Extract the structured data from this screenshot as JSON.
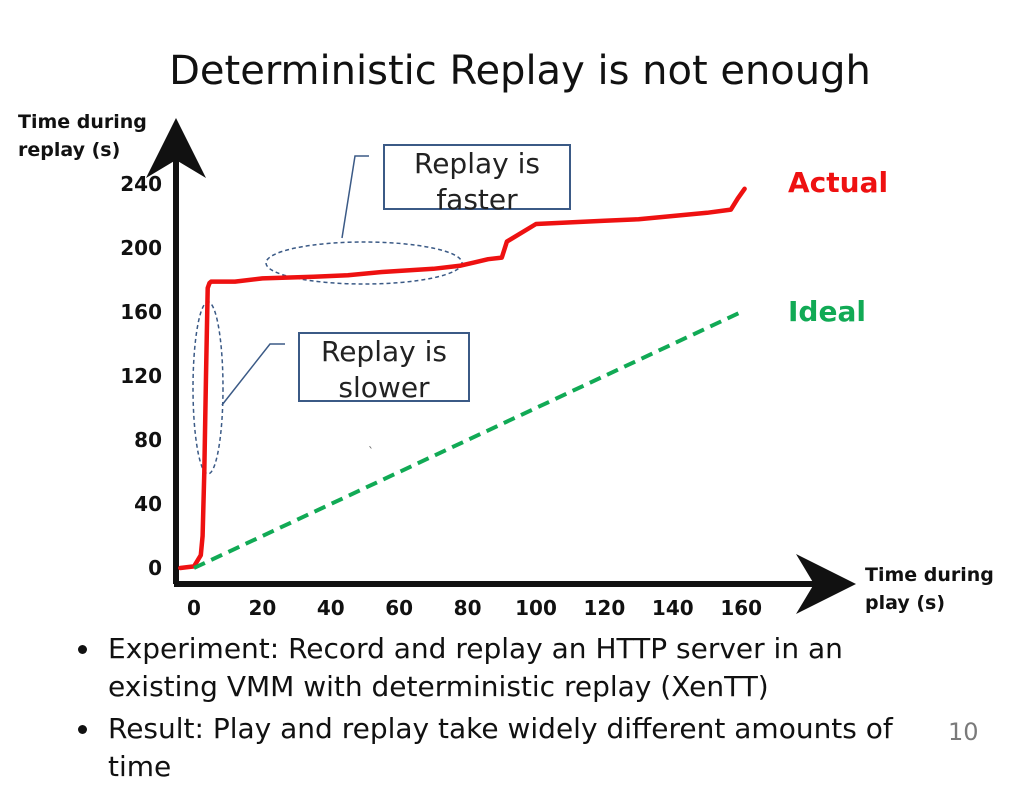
{
  "slide": {
    "title": "Deterministic Replay is not enough",
    "page_number": "10",
    "bullets": [
      "Experiment: Record and replay an HTTP server in an existing VMM with deterministic replay (XenTT)",
      "Result: Play and replay take widely different amounts of time"
    ],
    "callouts": {
      "faster": [
        "Replay is",
        "faster"
      ],
      "slower": [
        "Replay is",
        "slower"
      ]
    }
  },
  "chart_data": {
    "type": "line",
    "title": "",
    "xlabel": "Time during play (s)",
    "ylabel": "Time during replay (s)",
    "ylabel_lines": [
      "Time during",
      "replay (s)"
    ],
    "xlabel_lines": [
      "Time during",
      "play (s)"
    ],
    "x_ticks": [
      0,
      20,
      40,
      60,
      80,
      100,
      120,
      140,
      160
    ],
    "y_ticks": [
      0,
      40,
      80,
      120,
      160,
      200,
      240
    ],
    "xlim": [
      0,
      180
    ],
    "ylim": [
      0,
      250
    ],
    "grid": false,
    "legend": "direct labels at right end of lines",
    "series": [
      {
        "name": "Actual",
        "color": "#ee1111",
        "style": "solid",
        "x": [
          -4,
          0,
          2,
          2.5,
          3,
          3.5,
          4,
          4.5,
          5,
          7,
          12,
          20,
          35,
          45,
          55,
          70,
          78,
          82,
          86,
          90,
          91.5,
          93,
          100,
          110,
          120,
          130,
          140,
          150,
          157,
          159,
          161
        ],
        "y": [
          0,
          1,
          8,
          20,
          60,
          120,
          175,
          178,
          179,
          179,
          179,
          181,
          182,
          183,
          185,
          187,
          189,
          191,
          193,
          194,
          204,
          206,
          215,
          216,
          217,
          218,
          220,
          222,
          224,
          231,
          237
        ]
      },
      {
        "name": "Ideal",
        "color": "#11aa55",
        "style": "dashed",
        "x": [
          0,
          160
        ],
        "y": [
          0,
          160
        ]
      }
    ],
    "annotations": [
      {
        "text": "Replay is faster",
        "target": "actual curve between x 20 and 90"
      },
      {
        "text": "Replay is slower",
        "target": "actual curve between x 2 and 5"
      }
    ]
  }
}
